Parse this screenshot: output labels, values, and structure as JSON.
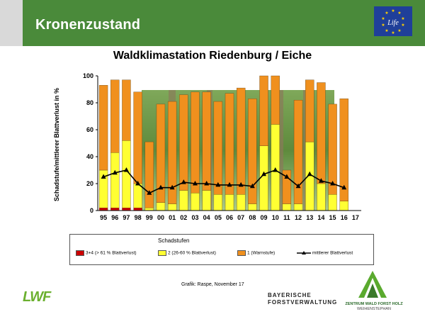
{
  "header": {
    "title": "Kronenzustand"
  },
  "logos": {
    "eu_life": "Life",
    "lwf": "LWF",
    "bavarian_forestry": [
      "BAYERISCHE",
      "FORSTVERWALTUNG"
    ],
    "forest_center": [
      "ZENTRUM WALD FORST HOLZ",
      "WEIHENSTEPHAN"
    ]
  },
  "credit": "Grafik: Raspe, November 17",
  "chart_data": {
    "type": "bar",
    "title": "Waldklimastation Riedenburg / Eiche",
    "ylabel": "Schadstufe/mittlerer Blattverlust in %",
    "ylim": [
      0,
      100
    ],
    "yticks": [
      0,
      20,
      40,
      60,
      80,
      100
    ],
    "categories": [
      "95",
      "96",
      "97",
      "98",
      "99",
      "00",
      "01",
      "02",
      "03",
      "04",
      "05",
      "06",
      "07",
      "08",
      "09",
      "10",
      "11",
      "12",
      "13",
      "14",
      "15",
      "16",
      "17"
    ],
    "stacked": true,
    "series": [
      {
        "name": "3+4 (> 61 % Blattverlust)",
        "color": "#cc0000",
        "values": [
          2,
          2,
          2,
          2,
          0,
          0,
          0,
          0,
          0,
          0,
          0,
          0,
          0,
          0,
          0,
          0,
          0,
          0,
          0,
          0,
          0,
          0,
          null
        ]
      },
      {
        "name": "2 (26-60 % Blattverlust)",
        "color": "#ffff33",
        "values": [
          28,
          41,
          50,
          18,
          2,
          6,
          5,
          15,
          13,
          15,
          12,
          12,
          12,
          5,
          48,
          64,
          5,
          5,
          51,
          20,
          12,
          7,
          null
        ]
      },
      {
        "name": "1 (Warnstufe)",
        "color": "#f0901e",
        "values": [
          63,
          54,
          45,
          68,
          49,
          73,
          76,
          71,
          75,
          73,
          69,
          75,
          79,
          78,
          52,
          36,
          25,
          77,
          46,
          75,
          67,
          76,
          null
        ]
      }
    ],
    "line": {
      "name": "mittlerer Blattverlust",
      "values": [
        25,
        28,
        30,
        20,
        13,
        17,
        17,
        21,
        20,
        20,
        19,
        19,
        19,
        18,
        27,
        30,
        25,
        18,
        27,
        22,
        20,
        17,
        null
      ]
    },
    "legend": {
      "title": "Schadstufen",
      "position": "bottom"
    }
  }
}
